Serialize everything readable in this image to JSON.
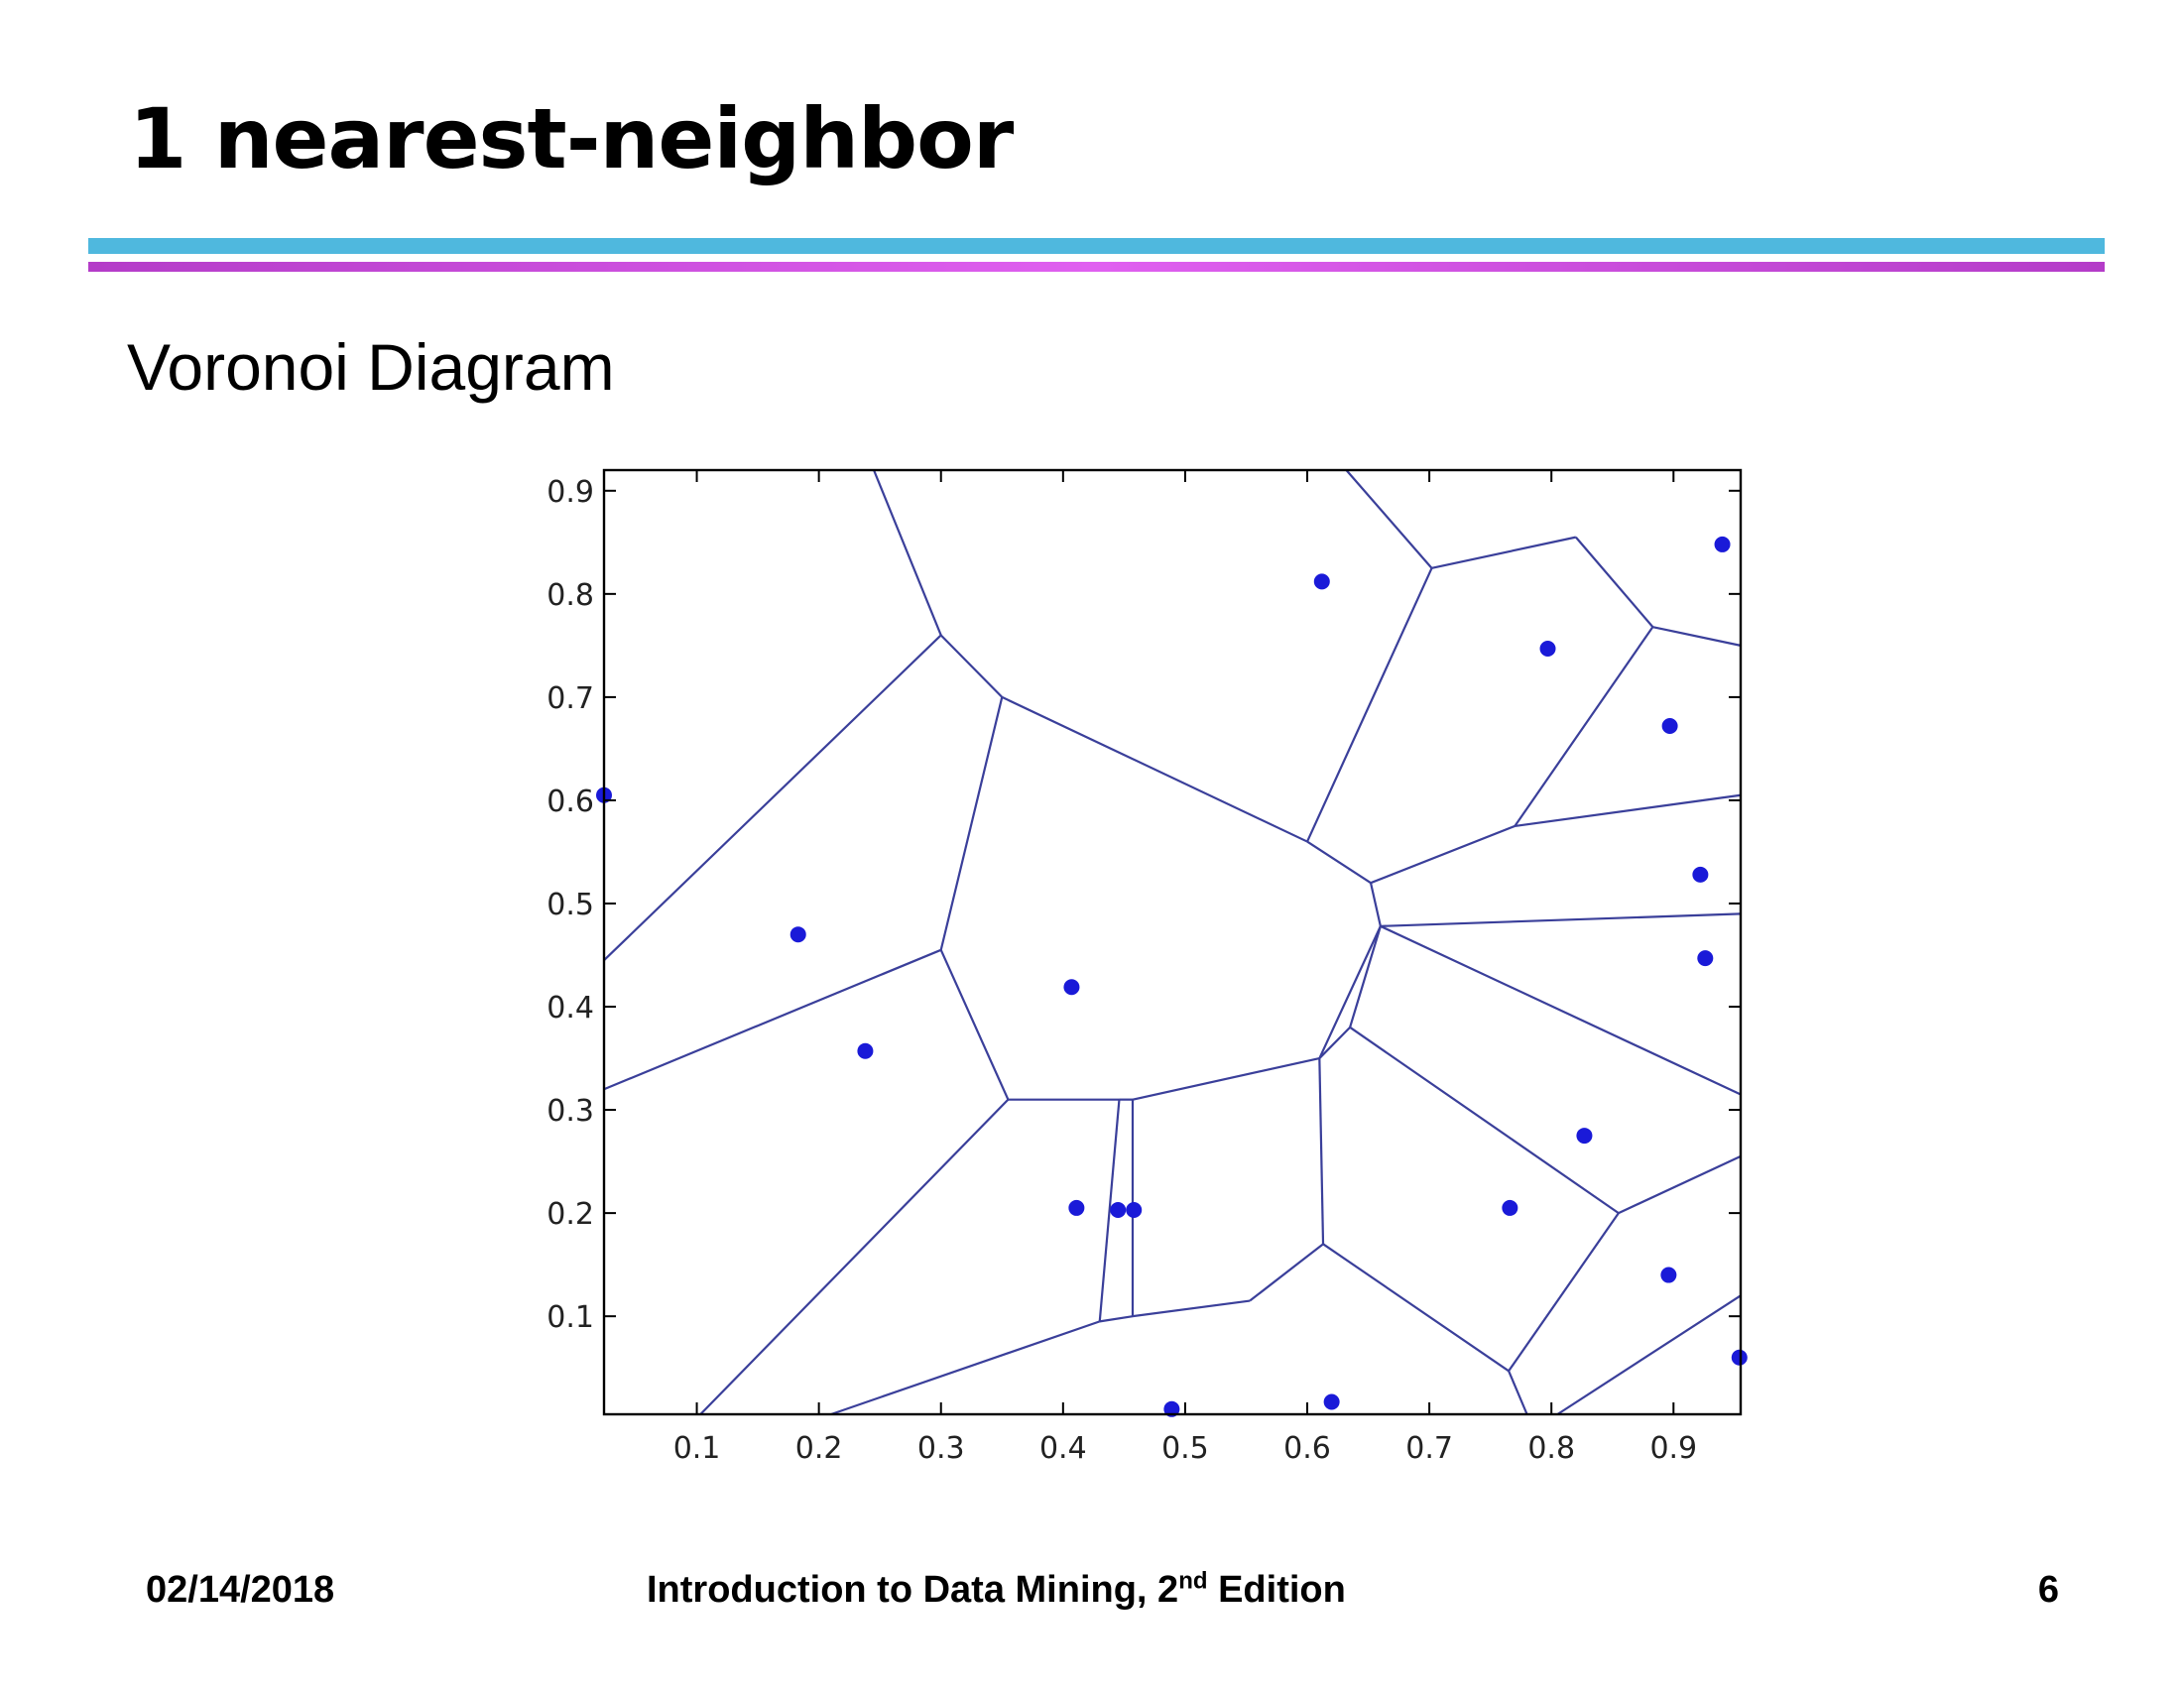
{
  "slide": {
    "title": "1 nearest-neighbor",
    "subtitle": "Voronoi Diagram"
  },
  "footer": {
    "date": "02/14/2018",
    "text_main": "Introduction to Data Mining, 2",
    "text_sup": "nd",
    "text_end": " Edition",
    "page": "6"
  },
  "colors": {
    "rule_top": "#4fb8de",
    "rule_bottom": "#b43cc8",
    "edge": "#3a3f9a",
    "point": "#1a1ad8"
  },
  "chart_data": {
    "type": "scatter",
    "title": "",
    "xlabel": "",
    "ylabel": "",
    "xlim": [
      0.024,
      0.955
    ],
    "ylim": [
      0.005,
      0.92
    ],
    "xticks": [
      "0.1",
      "0.2",
      "0.3",
      "0.4",
      "0.5",
      "0.6",
      "0.7",
      "0.8",
      "0.9"
    ],
    "yticks": [
      "0.1",
      "0.2",
      "0.3",
      "0.4",
      "0.5",
      "0.6",
      "0.7",
      "0.8",
      "0.9"
    ],
    "grid": false,
    "points": [
      {
        "x": 0.024,
        "y": 0.605
      },
      {
        "x": 0.183,
        "y": 0.47
      },
      {
        "x": 0.238,
        "y": 0.357
      },
      {
        "x": 0.407,
        "y": 0.419
      },
      {
        "x": 0.411,
        "y": 0.205
      },
      {
        "x": 0.445,
        "y": 0.203
      },
      {
        "x": 0.458,
        "y": 0.203
      },
      {
        "x": 0.489,
        "y": 0.01
      },
      {
        "x": 0.612,
        "y": 0.812
      },
      {
        "x": 0.62,
        "y": 0.017
      },
      {
        "x": 0.766,
        "y": 0.205
      },
      {
        "x": 0.797,
        "y": 0.747
      },
      {
        "x": 0.827,
        "y": 0.275
      },
      {
        "x": 0.897,
        "y": 0.672
      },
      {
        "x": 0.896,
        "y": 0.14
      },
      {
        "x": 0.922,
        "y": 0.528
      },
      {
        "x": 0.926,
        "y": 0.447
      },
      {
        "x": 0.94,
        "y": 0.848
      },
      {
        "x": 0.954,
        "y": 0.06
      }
    ],
    "voronoi_edges": [
      [
        [
          0.245,
          0.92
        ],
        [
          0.3,
          0.76
        ]
      ],
      [
        [
          0.3,
          0.76
        ],
        [
          0.024,
          0.445
        ]
      ],
      [
        [
          0.3,
          0.76
        ],
        [
          0.35,
          0.7
        ]
      ],
      [
        [
          0.35,
          0.7
        ],
        [
          0.3,
          0.455
        ]
      ],
      [
        [
          0.35,
          0.7
        ],
        [
          0.6,
          0.56
        ]
      ],
      [
        [
          0.3,
          0.455
        ],
        [
          0.024,
          0.32
        ]
      ],
      [
        [
          0.3,
          0.455
        ],
        [
          0.355,
          0.31
        ]
      ],
      [
        [
          0.355,
          0.31
        ],
        [
          0.103,
          0.005
        ]
      ],
      [
        [
          0.355,
          0.31
        ],
        [
          0.446,
          0.31
        ]
      ],
      [
        [
          0.446,
          0.31
        ],
        [
          0.457,
          0.31
        ]
      ],
      [
        [
          0.446,
          0.31
        ],
        [
          0.43,
          0.095
        ]
      ],
      [
        [
          0.457,
          0.31
        ],
        [
          0.457,
          0.1
        ]
      ],
      [
        [
          0.457,
          0.31
        ],
        [
          0.61,
          0.35
        ]
      ],
      [
        [
          0.61,
          0.35
        ],
        [
          0.613,
          0.17
        ]
      ],
      [
        [
          0.61,
          0.35
        ],
        [
          0.66,
          0.478
        ]
      ],
      [
        [
          0.613,
          0.17
        ],
        [
          0.553,
          0.115
        ]
      ],
      [
        [
          0.613,
          0.17
        ],
        [
          0.765,
          0.047
        ]
      ],
      [
        [
          0.553,
          0.115
        ],
        [
          0.457,
          0.1
        ]
      ],
      [
        [
          0.457,
          0.1
        ],
        [
          0.43,
          0.095
        ]
      ],
      [
        [
          0.43,
          0.095
        ],
        [
          0.21,
          0.005
        ]
      ],
      [
        [
          0.6,
          0.56
        ],
        [
          0.652,
          0.52
        ]
      ],
      [
        [
          0.6,
          0.56
        ],
        [
          0.702,
          0.825
        ]
      ],
      [
        [
          0.702,
          0.825
        ],
        [
          0.632,
          0.92
        ]
      ],
      [
        [
          0.702,
          0.825
        ],
        [
          0.82,
          0.855
        ]
      ],
      [
        [
          0.82,
          0.855
        ],
        [
          0.883,
          0.768
        ]
      ],
      [
        [
          0.883,
          0.768
        ],
        [
          0.955,
          0.75
        ]
      ],
      [
        [
          0.883,
          0.768
        ],
        [
          0.77,
          0.575
        ]
      ],
      [
        [
          0.652,
          0.52
        ],
        [
          0.77,
          0.575
        ]
      ],
      [
        [
          0.652,
          0.52
        ],
        [
          0.66,
          0.478
        ]
      ],
      [
        [
          0.77,
          0.575
        ],
        [
          0.955,
          0.605
        ]
      ],
      [
        [
          0.66,
          0.478
        ],
        [
          0.955,
          0.49
        ]
      ],
      [
        [
          0.66,
          0.478
        ],
        [
          0.955,
          0.315
        ]
      ],
      [
        [
          0.66,
          0.478
        ],
        [
          0.635,
          0.38
        ]
      ],
      [
        [
          0.635,
          0.38
        ],
        [
          0.61,
          0.35
        ]
      ],
      [
        [
          0.635,
          0.38
        ],
        [
          0.855,
          0.2
        ]
      ],
      [
        [
          0.855,
          0.2
        ],
        [
          0.955,
          0.255
        ]
      ],
      [
        [
          0.855,
          0.2
        ],
        [
          0.765,
          0.047
        ]
      ],
      [
        [
          0.765,
          0.047
        ],
        [
          0.78,
          0.005
        ]
      ],
      [
        [
          0.805,
          0.005
        ],
        [
          0.955,
          0.12
        ]
      ]
    ]
  }
}
